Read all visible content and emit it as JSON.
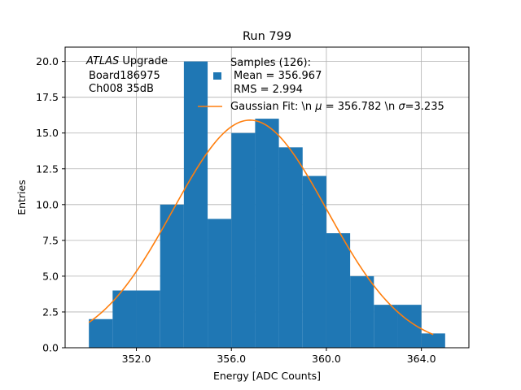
{
  "chart_data": {
    "type": "bar",
    "title": "Run 799",
    "xlabel": "Energy [ADC Counts]",
    "ylabel": "Entries",
    "xlim": [
      349.0,
      366.0
    ],
    "ylim": [
      0,
      21.0
    ],
    "xticks": [
      352.0,
      356.0,
      360.0,
      364.0
    ],
    "xtick_labels": [
      "352.0",
      "356.0",
      "360.0",
      "364.0"
    ],
    "yticks": [
      0,
      2.5,
      5,
      7.5,
      10,
      12.5,
      15,
      17.5,
      20
    ],
    "ytick_labels": [
      "0.0",
      "2.5",
      "5.0",
      "7.5",
      "10.0",
      "12.5",
      "15.0",
      "17.5",
      "20.0"
    ],
    "grid": true,
    "bin_width": 1.0,
    "bins": [
      {
        "left": 350,
        "count": 2
      },
      {
        "left": 351,
        "count": 4
      },
      {
        "left": 352,
        "count": 4
      },
      {
        "left": 353,
        "count": 10
      },
      {
        "left": 354,
        "count": 20
      },
      {
        "left": 355,
        "count": 9
      },
      {
        "left": 356,
        "count": 15
      },
      {
        "left": 357,
        "count": 16
      },
      {
        "left": 358,
        "count": 14
      },
      {
        "left": 359,
        "count": 12
      },
      {
        "left": 360,
        "count": 8
      },
      {
        "left": 361,
        "count": 5
      },
      {
        "left": 362,
        "count": 3
      },
      {
        "left": 363,
        "count": 3
      },
      {
        "left": 364,
        "count": 1
      }
    ],
    "fit": {
      "mu": 356.782,
      "sigma": 3.235,
      "amplitude": 15.9,
      "x_range": [
        350.0,
        364.5
      ]
    },
    "legend": {
      "placement": "top-right",
      "samples_line1": "Samples (126):",
      "samples_line2": "Mean = 356.967",
      "samples_line3": "RMS = 2.994",
      "fit_label_prefix": "Gaussian Fit: \\n ",
      "fit_mu_symbol": "μ",
      "fit_mu_value": " = 356.782 \\n ",
      "fit_sigma_symbol": "σ",
      "fit_sigma_value": "=3.235"
    },
    "annotation": {
      "experiment": "ATLAS",
      "line1_suffix": " Upgrade",
      "line2": "Board186975",
      "line3": "Ch008 35dB"
    },
    "colors": {
      "bars": "#1f77b4",
      "fit": "#ff7f0e",
      "grid": "#b0b0b0",
      "axes": "#000000"
    }
  }
}
